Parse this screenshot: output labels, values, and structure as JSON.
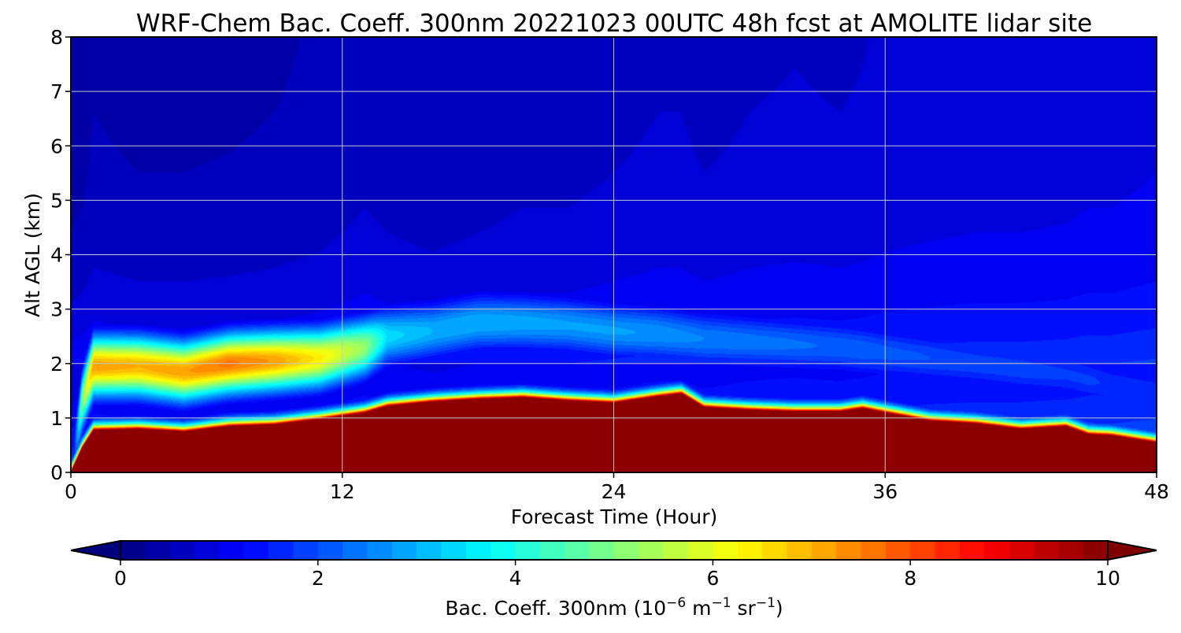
{
  "chart_data": {
    "type": "heatmap",
    "title": "WRF-Chem Bac. Coeff. 300nm  20221023 00UTC 48h fcst at AMOLITE lidar site",
    "xlabel": "Forecast Time (Hour)",
    "ylabel": "Alt AGL (km)",
    "xlim": [
      0,
      48
    ],
    "ylim": [
      0,
      8
    ],
    "xticks": [
      "0",
      "12",
      "24",
      "36",
      "48"
    ],
    "yticks": [
      "0",
      "1",
      "2",
      "3",
      "4",
      "5",
      "6",
      "7",
      "8"
    ],
    "grid": true,
    "colormap": "jet",
    "colorbar": {
      "label_prefix": "Bac. Coeff. 300nm  (10",
      "label_exp1": "−6",
      "label_mid1": " m",
      "label_exp2": "−1",
      "label_mid2": " sr",
      "label_exp3": "−1",
      "label_suffix": ")",
      "range": [
        0,
        10
      ],
      "ticks": [
        "0",
        "2",
        "4",
        "6",
        "8",
        "10"
      ],
      "extend": "both",
      "orientation": "horizontal"
    },
    "layers": {
      "hours": [
        0,
        0.5,
        1,
        3,
        5,
        7,
        9,
        11,
        13,
        14,
        16,
        18,
        20,
        22,
        24,
        26,
        27,
        28,
        30,
        32,
        34,
        35,
        36,
        38,
        40,
        42,
        44,
        45,
        46,
        48
      ],
      "saturated_top_km": [
        0,
        0.45,
        0.78,
        0.8,
        0.75,
        0.85,
        0.88,
        0.98,
        1.1,
        1.22,
        1.3,
        1.35,
        1.38,
        1.32,
        1.28,
        1.4,
        1.45,
        1.2,
        1.15,
        1.12,
        1.12,
        1.18,
        1.1,
        0.95,
        0.9,
        0.8,
        0.85,
        0.7,
        0.68,
        0.55
      ],
      "aerosol_layer_center_km": [
        0,
        1.3,
        1.95,
        1.95,
        1.85,
        2.0,
        2.05,
        2.1,
        2.3,
        2.5,
        2.6,
        2.75,
        2.75,
        2.7,
        2.6,
        2.55,
        2.5,
        2.45,
        2.4,
        2.35,
        2.3,
        2.25,
        2.2,
        2.1,
        2.0,
        1.9,
        1.8,
        1.7,
        1.6,
        1.45
      ],
      "aerosol_layer_peak": [
        0,
        5.0,
        7.2,
        7.0,
        7.2,
        7.6,
        7.2,
        6.4,
        5.2,
        3.4,
        3.0,
        3.0,
        2.9,
        2.8,
        2.8,
        2.7,
        2.6,
        2.5,
        2.4,
        2.3,
        2.2,
        2.2,
        2.1,
        2.0,
        1.9,
        1.9,
        1.8,
        1.8,
        1.7,
        1.7
      ],
      "background_aloft": [
        0.3,
        0.35,
        0.45,
        0.4,
        0.4,
        0.42,
        0.45,
        0.5,
        0.6,
        0.55,
        0.5,
        0.55,
        0.6,
        0.6,
        0.65,
        0.7,
        0.7,
        0.65,
        0.7,
        0.72,
        0.7,
        0.72,
        0.75,
        0.78,
        0.8,
        0.8,
        0.82,
        0.85,
        0.85,
        0.9
      ]
    }
  }
}
